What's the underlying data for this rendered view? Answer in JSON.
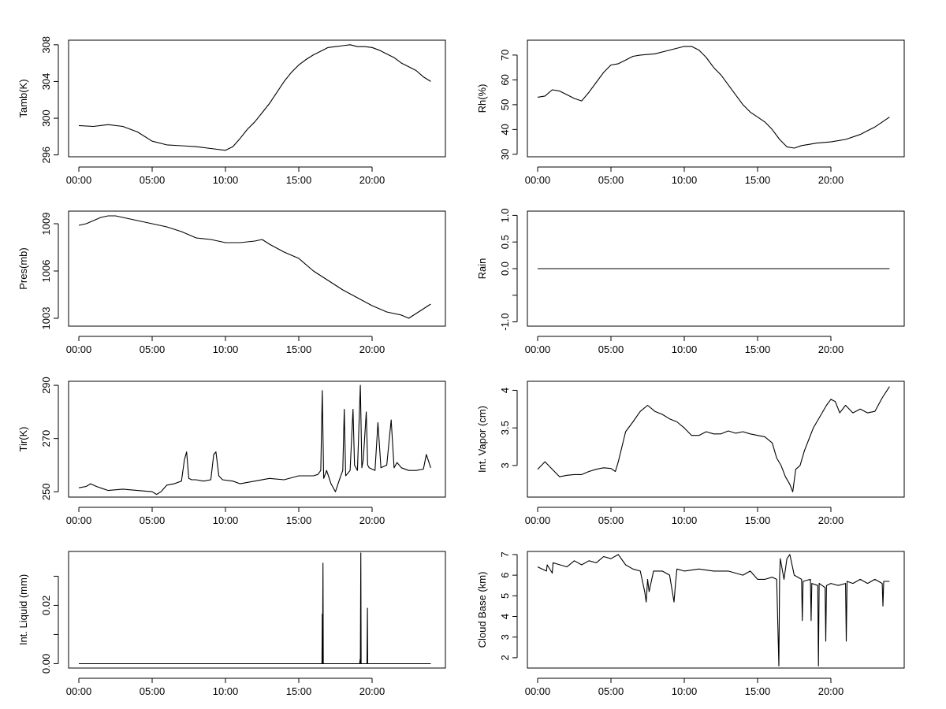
{
  "figure": {
    "x_ticks": [
      "00:00",
      "05:00",
      "10:00",
      "15:00",
      "20:00"
    ]
  },
  "chart_data": [
    {
      "id": "tamb",
      "type": "line",
      "ylabel": "Tamb(K)",
      "xlim": [
        -0.7,
        25.0
      ],
      "ylim": [
        295.8,
        308.5
      ],
      "yticks": [
        296,
        300,
        304,
        308
      ],
      "x": [
        0.0,
        1.0,
        2.0,
        3.0,
        4.0,
        5.0,
        6.0,
        7.0,
        8.0,
        9.0,
        10.0,
        10.5,
        11.0,
        11.5,
        12.0,
        12.5,
        13.0,
        13.5,
        14.0,
        14.5,
        15.0,
        15.5,
        16.0,
        16.5,
        17.0,
        17.5,
        18.0,
        18.5,
        19.0,
        19.5,
        20.0,
        20.5,
        21.0,
        21.5,
        22.0,
        22.5,
        23.0,
        23.5,
        24.0
      ],
      "y": [
        299.2,
        299.1,
        299.3,
        299.1,
        298.5,
        297.5,
        297.1,
        297.0,
        296.9,
        296.7,
        296.5,
        296.9,
        297.8,
        298.8,
        299.6,
        300.6,
        301.6,
        302.8,
        304.0,
        305.0,
        305.8,
        306.4,
        306.9,
        307.3,
        307.7,
        307.8,
        307.9,
        308.0,
        307.8,
        307.8,
        307.7,
        307.4,
        307.0,
        306.6,
        306.0,
        305.6,
        305.2,
        304.5,
        304.0
      ]
    },
    {
      "id": "rh",
      "type": "line",
      "ylabel": "Rh(%)",
      "xlim": [
        -0.7,
        25.0
      ],
      "ylim": [
        29,
        76
      ],
      "yticks": [
        30,
        40,
        50,
        60,
        70
      ],
      "x": [
        0.0,
        0.5,
        1.0,
        1.5,
        2.0,
        2.5,
        3.0,
        3.5,
        4.0,
        4.5,
        5.0,
        5.5,
        6.0,
        6.5,
        7.0,
        8.0,
        9.0,
        10.0,
        10.5,
        11.0,
        11.5,
        12.0,
        12.5,
        13.0,
        13.5,
        14.0,
        14.5,
        15.0,
        15.5,
        16.0,
        16.5,
        17.0,
        17.5,
        18.0,
        18.5,
        19.0,
        20.0,
        21.0,
        22.0,
        22.5,
        23.0,
        23.5,
        24.0
      ],
      "y": [
        53,
        53.5,
        56,
        55.5,
        54,
        52.5,
        51.5,
        55,
        59,
        63,
        66,
        66.5,
        68,
        69.5,
        70,
        70.5,
        72,
        73.5,
        73.5,
        72,
        69,
        65,
        62,
        58,
        54,
        50,
        47,
        45,
        43,
        40,
        36,
        33,
        32.5,
        33.5,
        34,
        34.5,
        35,
        36,
        38,
        39.5,
        41,
        43,
        45
      ]
    },
    {
      "id": "pres",
      "type": "line",
      "ylabel": "Pres(mb)",
      "xlim": [
        -0.7,
        25.0
      ],
      "ylim": [
        1002.5,
        1009.8
      ],
      "yticks": [
        1003,
        1006,
        1009
      ],
      "x": [
        0.0,
        0.5,
        1.0,
        1.5,
        2.0,
        2.5,
        3.0,
        4.0,
        5.0,
        6.0,
        7.0,
        8.0,
        9.0,
        10.0,
        11.0,
        12.0,
        12.5,
        13.0,
        14.0,
        15.0,
        16.0,
        17.0,
        18.0,
        19.0,
        20.0,
        21.0,
        22.0,
        22.5,
        23.0,
        23.5,
        24.0
      ],
      "y": [
        1008.9,
        1009.0,
        1009.2,
        1009.4,
        1009.5,
        1009.5,
        1009.4,
        1009.2,
        1009.0,
        1008.8,
        1008.5,
        1008.1,
        1008.0,
        1007.8,
        1007.8,
        1007.9,
        1008.0,
        1007.7,
        1007.2,
        1006.8,
        1006.0,
        1005.4,
        1004.8,
        1004.3,
        1003.8,
        1003.4,
        1003.2,
        1003.0,
        1003.3,
        1003.6,
        1003.9
      ]
    },
    {
      "id": "rain",
      "type": "line",
      "ylabel": "Rain",
      "xlim": [
        -0.7,
        25.0
      ],
      "ylim": [
        -1.08,
        1.08
      ],
      "yticks": [
        -1.0,
        -0.5,
        0.0,
        0.5,
        1.0
      ],
      "ytick_labels": [
        "-1.0",
        "",
        "0.0",
        "0.5",
        "1.0"
      ],
      "x": [
        0.0,
        24.0
      ],
      "y": [
        0.0,
        0.0
      ]
    },
    {
      "id": "tir",
      "type": "line",
      "ylabel": "Tir(K)",
      "xlim": [
        -0.7,
        25.0
      ],
      "ylim": [
        248,
        291.5
      ],
      "yticks": [
        250,
        270,
        290
      ],
      "x": [
        0.0,
        0.5,
        0.8,
        1.2,
        2.0,
        3.0,
        4.0,
        5.0,
        5.3,
        5.6,
        6.0,
        6.5,
        7.0,
        7.2,
        7.35,
        7.5,
        7.7,
        8.0,
        8.5,
        9.0,
        9.2,
        9.35,
        9.55,
        9.8,
        10.5,
        11.0,
        12.0,
        13.0,
        14.0,
        15.0,
        16.0,
        16.3,
        16.5,
        16.6,
        16.7,
        16.9,
        17.2,
        17.5,
        17.8,
        18.0,
        18.1,
        18.2,
        18.5,
        18.7,
        18.8,
        19.0,
        19.2,
        19.3,
        19.4,
        19.6,
        19.7,
        19.8,
        20.2,
        20.4,
        20.6,
        21.0,
        21.3,
        21.5,
        21.7,
        22.0,
        22.5,
        23.0,
        23.5,
        23.7,
        24.0
      ],
      "y": [
        251.5,
        252.0,
        253.0,
        252.0,
        250.5,
        251.0,
        250.5,
        250.0,
        249.0,
        250.0,
        252.5,
        253.0,
        254.0,
        262.0,
        265.0,
        255.0,
        254.5,
        254.5,
        254.0,
        254.5,
        264.0,
        265.0,
        256.0,
        254.5,
        254.0,
        253.0,
        254.0,
        255.0,
        254.5,
        256.0,
        256.0,
        256.5,
        258.0,
        288.0,
        255.0,
        258.0,
        253.0,
        250.0,
        255.0,
        258.0,
        281.0,
        256.0,
        258.0,
        281.0,
        260.0,
        258.0,
        290.0,
        259.0,
        262.0,
        280.0,
        260.0,
        259.0,
        258.0,
        276.0,
        259.0,
        260.0,
        277.0,
        259.0,
        261.0,
        259.0,
        258.0,
        258.0,
        258.5,
        264.0,
        259.0
      ]
    },
    {
      "id": "vapor",
      "type": "line",
      "ylabel": "Int. Vapor (cm)",
      "xlim": [
        -0.7,
        25.0
      ],
      "ylim": [
        2.58,
        4.12
      ],
      "yticks": [
        3.0,
        3.5,
        4.0
      ],
      "x": [
        0.0,
        0.5,
        1.0,
        1.5,
        2.0,
        2.5,
        3.0,
        3.5,
        4.0,
        4.5,
        5.0,
        5.3,
        5.5,
        6.0,
        6.5,
        7.0,
        7.5,
        8.0,
        8.5,
        9.0,
        9.5,
        10.0,
        10.5,
        11.0,
        11.5,
        12.0,
        12.5,
        13.0,
        13.5,
        14.0,
        14.5,
        15.0,
        15.5,
        16.0,
        16.3,
        16.6,
        16.9,
        17.2,
        17.4,
        17.6,
        17.9,
        18.2,
        18.5,
        18.8,
        19.1,
        19.4,
        19.7,
        20.0,
        20.3,
        20.6,
        21.0,
        21.5,
        22.0,
        22.5,
        23.0,
        23.5,
        24.0
      ],
      "y": [
        2.95,
        3.05,
        2.95,
        2.85,
        2.87,
        2.88,
        2.88,
        2.92,
        2.95,
        2.97,
        2.96,
        2.92,
        3.05,
        3.45,
        3.58,
        3.72,
        3.8,
        3.72,
        3.68,
        3.62,
        3.58,
        3.5,
        3.4,
        3.4,
        3.45,
        3.42,
        3.42,
        3.46,
        3.43,
        3.45,
        3.42,
        3.4,
        3.38,
        3.3,
        3.1,
        3.0,
        2.85,
        2.75,
        2.65,
        2.95,
        3.0,
        3.2,
        3.35,
        3.5,
        3.6,
        3.7,
        3.8,
        3.88,
        3.85,
        3.7,
        3.8,
        3.7,
        3.75,
        3.7,
        3.72,
        3.9,
        4.05
      ]
    },
    {
      "id": "liquid",
      "type": "line",
      "ylabel": "Int. Liquid (mm)",
      "xlim": [
        -0.7,
        25.0
      ],
      "ylim": [
        -0.0015,
        0.0385
      ],
      "yticks": [
        0.0,
        0.01,
        0.02,
        0.03
      ],
      "ytick_labels": [
        "0.00",
        "",
        "0.02",
        ""
      ],
      "x": [
        0.0,
        16.58,
        16.6,
        16.62,
        16.65,
        16.67,
        16.69,
        19.15,
        19.18,
        19.2,
        19.23,
        19.25,
        19.65,
        19.68,
        19.7,
        24.0
      ],
      "y": [
        0.0,
        0.0,
        0.017,
        0.0,
        0.0345,
        0.0,
        0.0,
        0.0,
        0.0015,
        0.0,
        0.038,
        0.0,
        0.0,
        0.019,
        0.0,
        0.0
      ]
    },
    {
      "id": "cloudbase",
      "type": "line",
      "ylabel": "Cloud Base (km)",
      "xlim": [
        -0.7,
        25.0
      ],
      "ylim": [
        1.5,
        7.15
      ],
      "yticks": [
        2,
        3,
        4,
        5,
        6,
        7
      ],
      "x": [
        0.0,
        0.6,
        0.65,
        1.0,
        1.05,
        2.0,
        2.5,
        3.0,
        3.5,
        4.0,
        4.5,
        5.0,
        5.5,
        6.0,
        6.5,
        7.0,
        7.3,
        7.4,
        7.5,
        7.6,
        7.9,
        8.5,
        9.0,
        9.3,
        9.4,
        9.5,
        10.0,
        11.0,
        12.0,
        13.0,
        14.0,
        14.5,
        15.0,
        15.5,
        16.0,
        16.3,
        16.45,
        16.5,
        16.55,
        16.8,
        17.0,
        17.2,
        17.5,
        18.0,
        18.05,
        18.1,
        18.6,
        18.65,
        18.7,
        19.1,
        19.15,
        19.2,
        19.6,
        19.65,
        19.7,
        20.0,
        20.5,
        21.0,
        21.05,
        21.1,
        21.5,
        22.0,
        22.5,
        23.0,
        23.5,
        23.55,
        23.6,
        24.0
      ],
      "y": [
        6.4,
        6.2,
        6.5,
        6.1,
        6.6,
        6.4,
        6.7,
        6.5,
        6.7,
        6.6,
        6.9,
        6.8,
        7.0,
        6.5,
        6.3,
        6.2,
        5.2,
        4.7,
        5.8,
        5.2,
        6.2,
        6.2,
        6.0,
        4.7,
        5.6,
        6.3,
        6.2,
        6.3,
        6.2,
        6.2,
        6.0,
        6.2,
        5.8,
        5.8,
        5.9,
        5.8,
        1.6,
        5.9,
        6.8,
        5.8,
        6.8,
        7.0,
        6.0,
        5.8,
        3.8,
        5.7,
        5.8,
        3.8,
        5.6,
        5.5,
        1.6,
        5.6,
        5.4,
        2.8,
        5.5,
        5.6,
        5.5,
        5.6,
        2.8,
        5.7,
        5.6,
        5.8,
        5.6,
        5.8,
        5.6,
        4.5,
        5.7,
        5.7
      ]
    }
  ]
}
